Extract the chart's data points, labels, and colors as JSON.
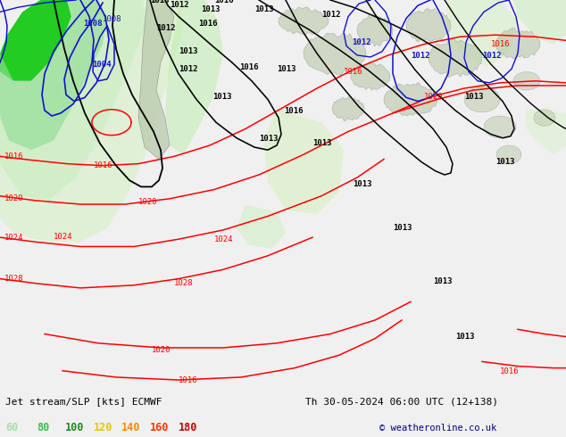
{
  "title_left": "Jet stream/SLP [kts] ECMWF",
  "title_right": "Th 30-05-2024 06:00 UTC (12+138)",
  "copyright": "© weatheronline.co.uk",
  "legend_values": [
    "60",
    "80",
    "100",
    "120",
    "140",
    "160",
    "180"
  ],
  "legend_colors": [
    "#aaddaa",
    "#44bb44",
    "#228822",
    "#ddcc00",
    "#ff8800",
    "#ff3300",
    "#cc0000"
  ],
  "bg_color": "#f0f0f0",
  "map_bg": "#f4f4f4",
  "bottom_bg": "#e0e0e0",
  "label_fontsize": 8,
  "title_fontsize": 8.0,
  "copyright_fontsize": 7.5,
  "isobar_lw": 1.0
}
